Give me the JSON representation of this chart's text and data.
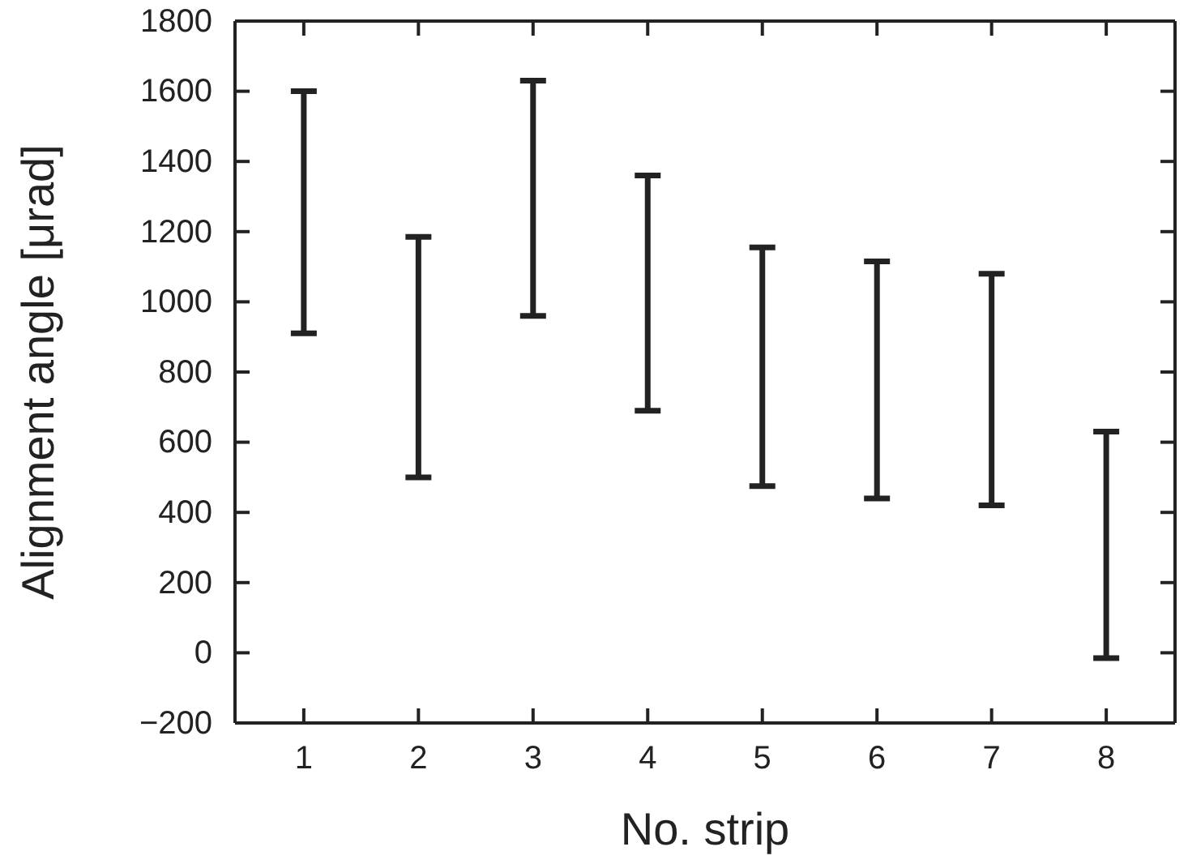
{
  "chart_data": {
    "type": "bar",
    "xlabel": "No. strip",
    "ylabel": "Alignment angle [μrad]",
    "categories": [
      "1",
      "2",
      "3",
      "4",
      "5",
      "6",
      "7",
      "8"
    ],
    "base": [
      910,
      500,
      960,
      690,
      475,
      440,
      420,
      -15
    ],
    "values": [
      690,
      685,
      670,
      670,
      680,
      675,
      660,
      645
    ],
    "color": "#222222",
    "ylim": [
      -200,
      1800
    ],
    "yticks": [
      {
        "value": -200,
        "label": "−200"
      },
      0,
      200,
      400,
      600,
      800,
      1000,
      1200,
      1400,
      1600,
      1800
    ],
    "grid": false,
    "legend": false
  }
}
